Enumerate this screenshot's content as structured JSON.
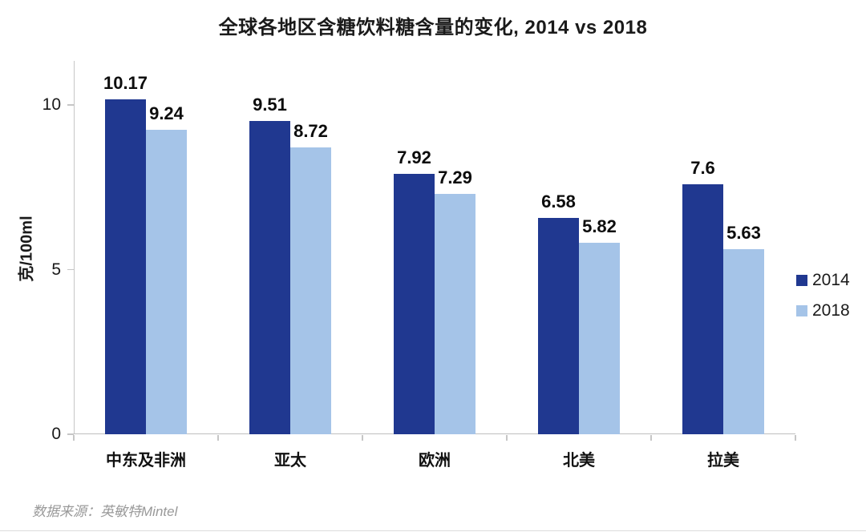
{
  "chart_data": {
    "type": "bar",
    "title": "全球各地区含糖饮料糖含量的变化, 2014 vs 2018",
    "ylabel": "克/100ml",
    "categories": [
      "中东及非洲",
      "亚太",
      "欧洲",
      "北美",
      "拉美"
    ],
    "series": [
      {
        "name": "2014",
        "color": "#203890",
        "values": [
          10.17,
          9.51,
          7.92,
          6.58,
          7.6
        ]
      },
      {
        "name": "2018",
        "color": "#A5C4E8",
        "values": [
          9.24,
          8.72,
          7.29,
          5.82,
          5.63
        ]
      }
    ],
    "yticks": [
      0,
      5,
      10
    ],
    "ylim": [
      0,
      11.34
    ],
    "grid": false,
    "legend_position": "right",
    "value_labels_shown": true
  },
  "colors": {
    "axis": "#c6c6c6",
    "text": "#1a1a1a",
    "source_text": "#999999"
  },
  "source": "数据来源：英敏特Mintel"
}
